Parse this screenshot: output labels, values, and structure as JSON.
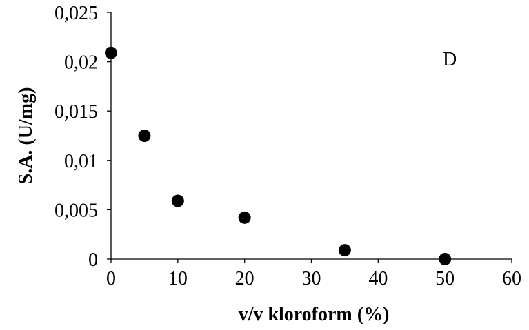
{
  "chart_data": {
    "type": "scatter",
    "xlabel": "v/v kloroform (%)",
    "ylabel": "S.A. (U/mg)",
    "annotation": "D",
    "x": [
      0,
      5,
      10,
      20,
      35,
      50
    ],
    "values": [
      0.0209,
      0.0125,
      0.0059,
      0.0042,
      0.0009,
      0.0
    ],
    "color": "#000000",
    "xlim": [
      0,
      60
    ],
    "xticks": [
      0,
      10,
      20,
      30,
      40,
      50,
      60
    ],
    "ylim": [
      0,
      0.025
    ],
    "yticks": [
      0,
      {
        "value": 0.005,
        "label": "0,005"
      },
      {
        "value": 0.01,
        "label": "0,01"
      },
      {
        "value": 0.015,
        "label": "0,015"
      },
      {
        "value": 0.02,
        "label": "0,02"
      },
      {
        "value": 0.025,
        "label": "0,025"
      }
    ],
    "grid": false
  }
}
